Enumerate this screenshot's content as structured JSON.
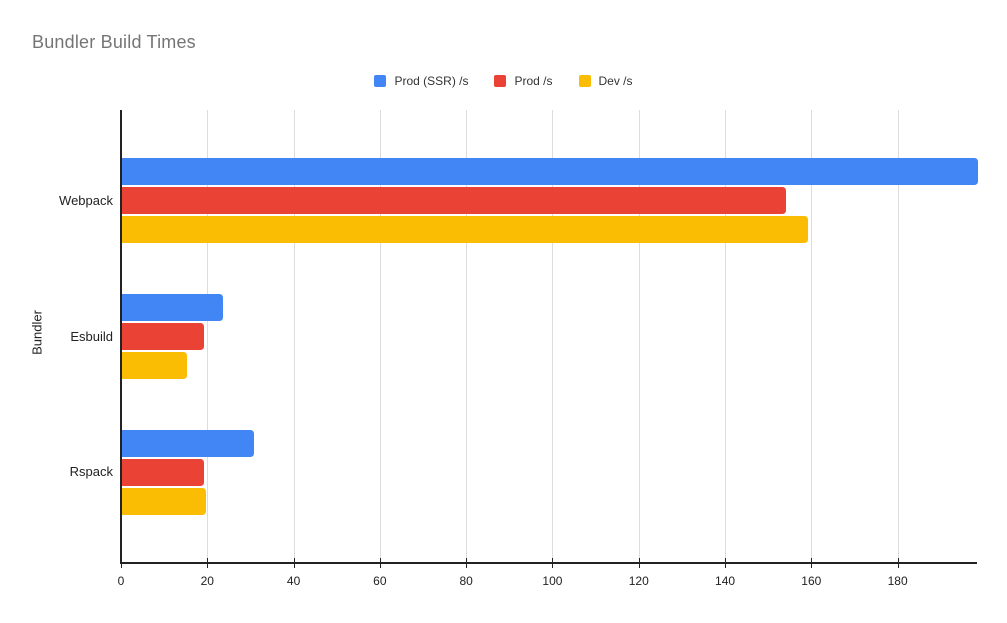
{
  "title": "Bundler Build Times",
  "colors": {
    "series_blue": "#4285F4",
    "series_red": "#EA4335",
    "series_yellow": "#FBBC04",
    "title_text": "#757575",
    "axis_text": "#222222",
    "gridline": "#dcdcdc",
    "axis_line": "#222222",
    "background": "#ffffff"
  },
  "chart_data": {
    "type": "bar",
    "orientation": "horizontal",
    "title": "Bundler Build Times",
    "xlabel": "",
    "ylabel": "Bundler",
    "categories": [
      "Webpack",
      "Esbuild",
      "Rspack"
    ],
    "series": [
      {
        "name": "Prod (SSR) /s",
        "color": "#4285F4",
        "values": [
          198.4,
          23.4,
          30.5
        ]
      },
      {
        "name": "Prod /s",
        "color": "#EA4335",
        "values": [
          154.0,
          19.0,
          19.0
        ]
      },
      {
        "name": "Dev /s",
        "color": "#FBBC04",
        "values": [
          159.1,
          15.1,
          19.5
        ]
      }
    ],
    "x_ticks": [
      0,
      20,
      40,
      60,
      80,
      100,
      120,
      140,
      160,
      180
    ],
    "xlim": [
      0,
      198.4
    ],
    "grid": true,
    "legend_position": "top-center"
  }
}
